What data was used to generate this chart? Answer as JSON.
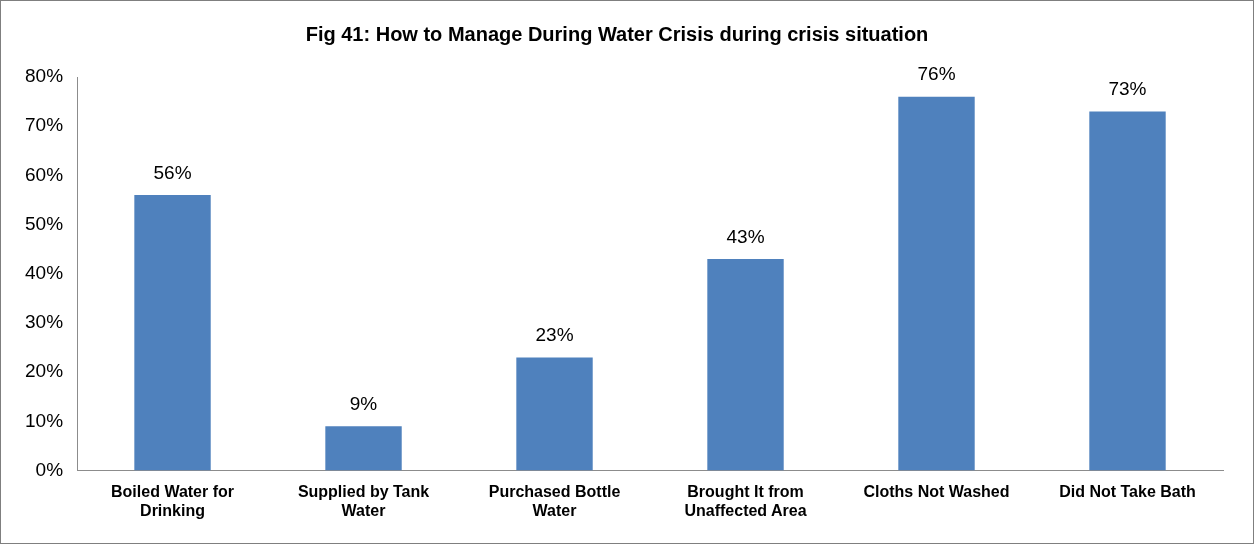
{
  "chart_data": {
    "type": "bar",
    "title": "Fig 41: How to Manage During Water Crisis during crisis situation",
    "categories": [
      "Boiled Water for Drinking",
      "Supplied by Tank Water",
      "Purchased Bottle Water",
      "Brought It from Unaffected Area",
      "Cloths Not Washed",
      "Did Not Take Bath"
    ],
    "values": [
      56,
      9,
      23,
      43,
      76,
      73
    ],
    "value_labels": [
      "56%",
      "9%",
      "23%",
      "43%",
      "76%",
      "73%"
    ],
    "color": "#4f81bd",
    "ylim": [
      0,
      80
    ],
    "yticks": [
      {
        "value": 0,
        "label": "0%"
      },
      {
        "value": 10,
        "label": "10%"
      },
      {
        "value": 20,
        "label": "20%"
      },
      {
        "value": 30,
        "label": "30%"
      },
      {
        "value": 40,
        "label": "40%"
      },
      {
        "value": 50,
        "label": "50%"
      },
      {
        "value": 60,
        "label": "60%"
      },
      {
        "value": 70,
        "label": "70%"
      },
      {
        "value": 80,
        "label": "80%"
      }
    ],
    "grid": false,
    "legend": false
  }
}
